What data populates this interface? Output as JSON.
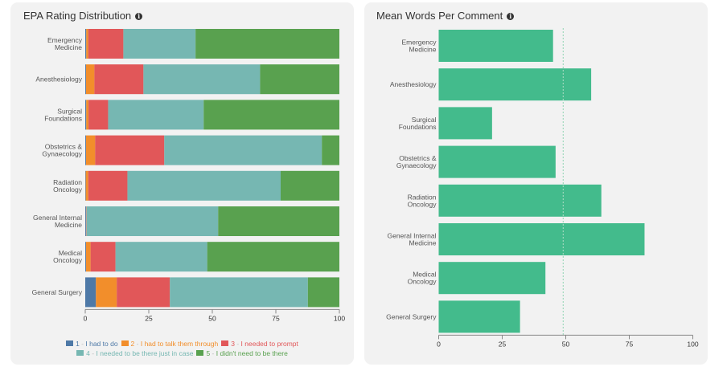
{
  "colors": {
    "panel_bg": "#f2f2f2",
    "rating_1": "#4e79a7",
    "rating_2": "#f28e2b",
    "rating_3": "#e15759",
    "rating_4": "#76b7b2",
    "rating_5": "#59a14f",
    "words_bar": "#43bb8c",
    "mean_line": "#9fd8bd"
  },
  "panels": {
    "left": {
      "title": "EPA Rating Distribution",
      "info_icon": "info-circle-icon"
    },
    "right": {
      "title": "Mean Words Per Comment",
      "info_icon": "info-circle-icon"
    }
  },
  "chart_data": [
    {
      "type": "bar",
      "orientation": "horizontal",
      "stacked": true,
      "title": "EPA Rating Distribution",
      "xlabel": "",
      "ylabel": "",
      "xlim": [
        0,
        100
      ],
      "xticks": [
        "0",
        "25",
        "50",
        "75",
        "100"
      ],
      "categories": [
        [
          "Emergency",
          "Medicine"
        ],
        [
          "Anesthesiology"
        ],
        [
          "Surgical",
          "Foundations"
        ],
        [
          "Obstetrics &",
          "Gynaecology"
        ],
        [
          "Radiation",
          "Oncology"
        ],
        [
          "General Internal",
          "Medicine"
        ],
        [
          "Medical",
          "Oncology"
        ],
        [
          "General Surgery"
        ]
      ],
      "series": [
        {
          "name": "1",
          "label": "I had to do",
          "values": [
            0.4,
            0.3,
            0.4,
            0.3,
            0.2,
            0.3,
            0.3,
            4.2
          ]
        },
        {
          "name": "2",
          "label": "I had to talk them through",
          "values": [
            0.8,
            3.3,
            0.9,
            3.6,
            1.0,
            0.1,
            1.8,
            8.2
          ]
        },
        {
          "name": "3",
          "label": "I needed to prompt",
          "values": [
            13.8,
            19.3,
            7.7,
            27.2,
            15.4,
            0.1,
            9.8,
            20.9
          ]
        },
        {
          "name": "4",
          "label": "I needed to be there just in case",
          "values": [
            28.4,
            45.9,
            37.6,
            62.0,
            60.3,
            51.8,
            36.1,
            54.3
          ]
        },
        {
          "name": "5",
          "label": "I didn't need to be there",
          "values": [
            56.6,
            31.2,
            53.4,
            6.9,
            23.1,
            47.7,
            52.0,
            12.4
          ]
        }
      ],
      "legend_position": "bottom"
    },
    {
      "type": "bar",
      "orientation": "horizontal",
      "title": "Mean Words Per Comment",
      "xlabel": "",
      "ylabel": "",
      "xlim": [
        0,
        100
      ],
      "xticks": [
        "0",
        "25",
        "50",
        "75",
        "100"
      ],
      "categories": [
        [
          "Emergency",
          "Medicine"
        ],
        [
          "Anesthesiology"
        ],
        [
          "Surgical",
          "Foundations"
        ],
        [
          "Obstetrics &",
          "Gynaecology"
        ],
        [
          "Radiation",
          "Oncology"
        ],
        [
          "General Internal",
          "Medicine"
        ],
        [
          "Medical",
          "Oncology"
        ],
        [
          "General Surgery"
        ]
      ],
      "values": [
        45,
        60,
        21,
        46,
        64,
        81,
        42,
        32
      ],
      "reference_line": {
        "value": 49,
        "style": "dotted"
      }
    }
  ]
}
